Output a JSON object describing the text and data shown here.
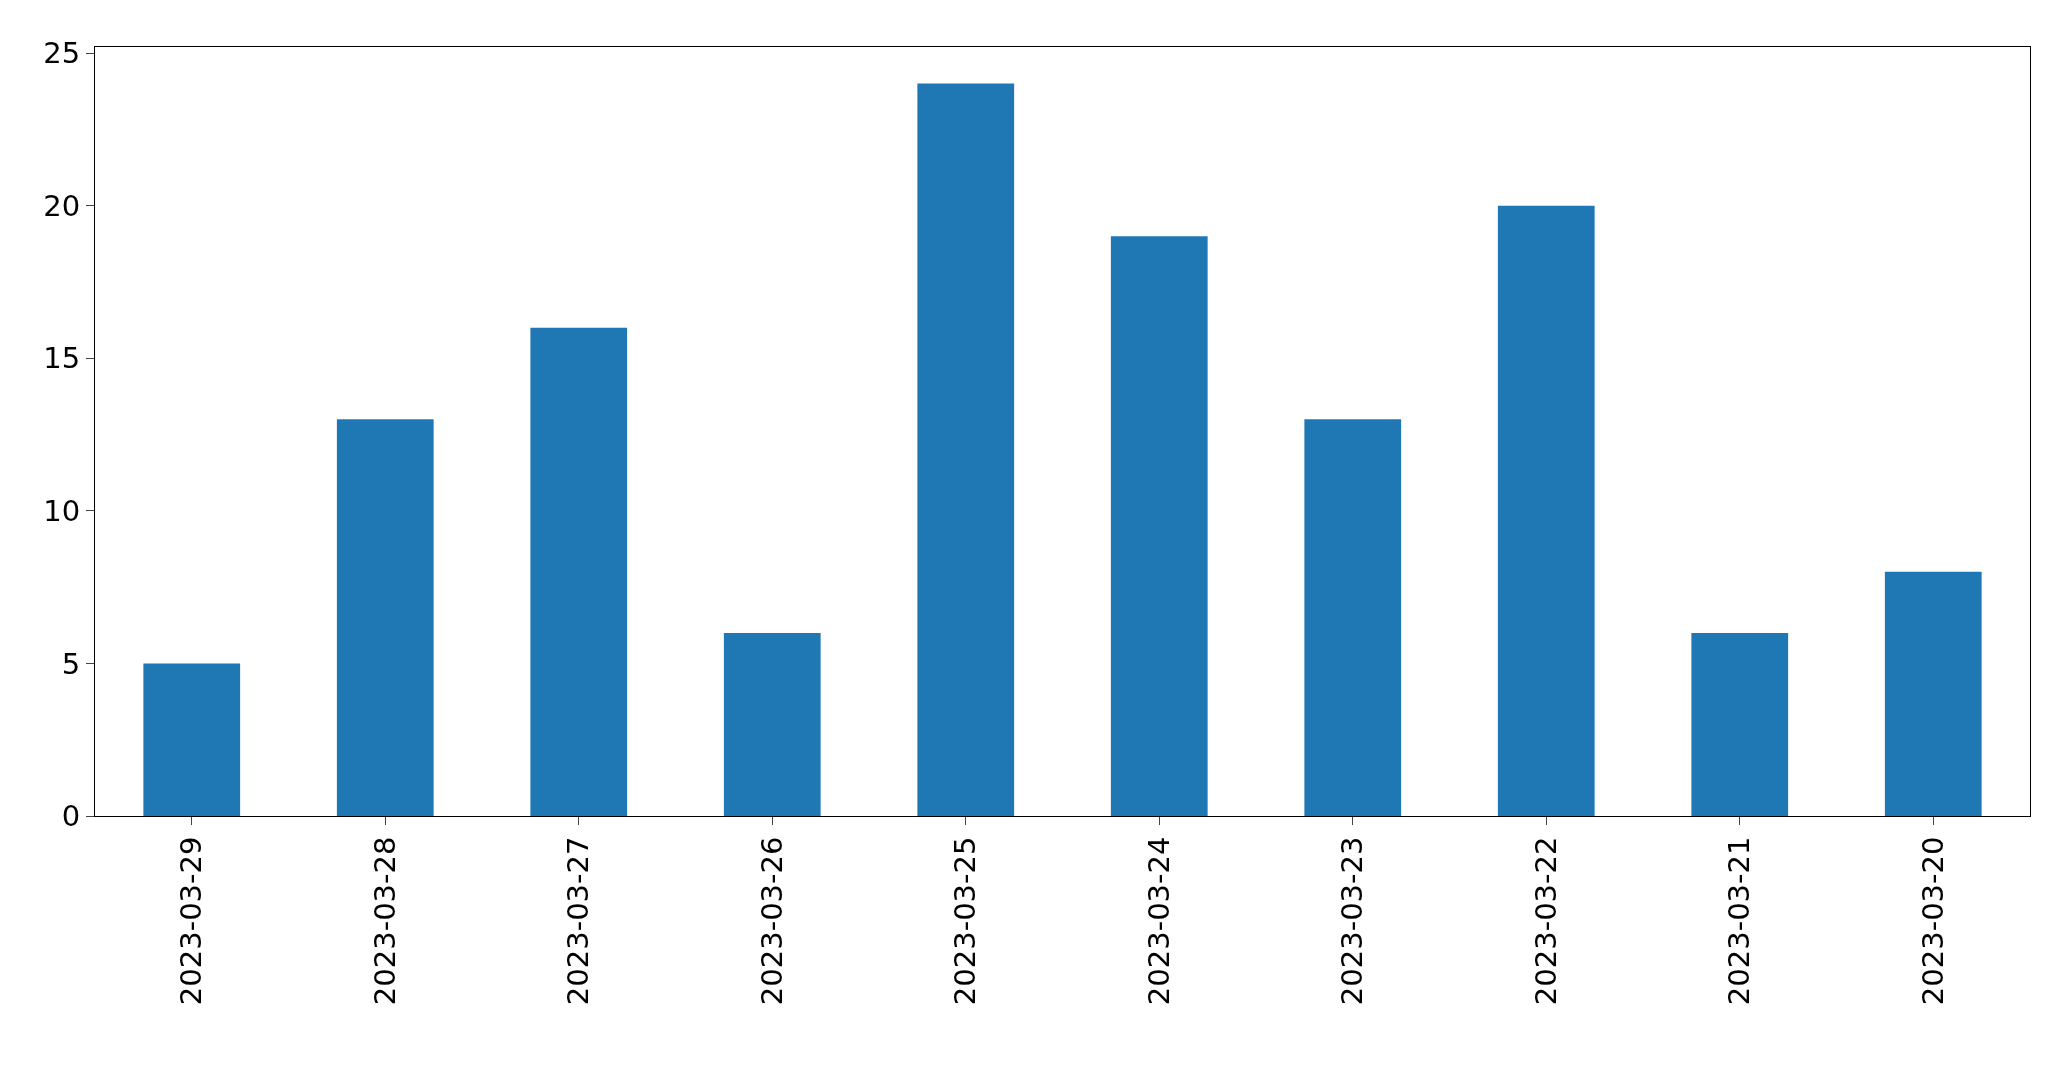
{
  "chart_data": {
    "type": "bar",
    "categories": [
      "2023-03-29",
      "2023-03-28",
      "2023-03-27",
      "2023-03-26",
      "2023-03-25",
      "2023-03-24",
      "2023-03-23",
      "2023-03-22",
      "2023-03-21",
      "2023-03-20"
    ],
    "values": [
      5,
      13,
      16,
      6,
      24,
      19,
      13,
      20,
      6,
      8
    ],
    "color": "#1f77b4",
    "ylim": [
      0,
      25.2
    ],
    "yticks": [
      0,
      5,
      10,
      15,
      20,
      25
    ]
  }
}
